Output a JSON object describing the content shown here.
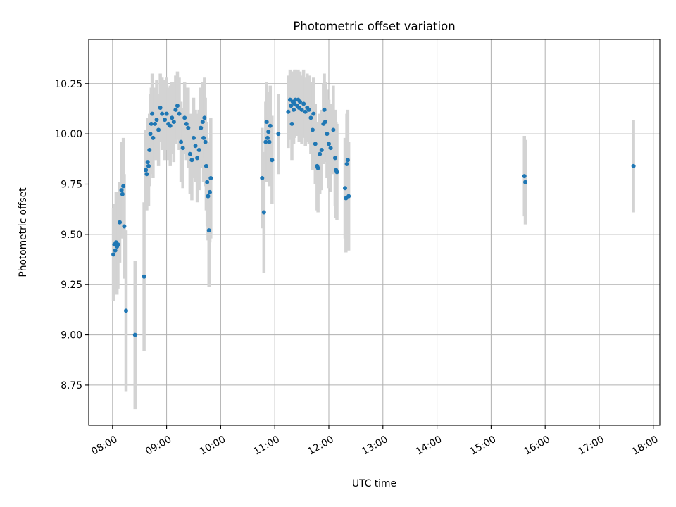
{
  "chart_data": {
    "type": "scatter",
    "title": "Photometric offset variation",
    "xlabel": "UTC time",
    "ylabel": "Photometric offset",
    "x_tick_labels": [
      "08:00",
      "09:00",
      "10:00",
      "11:00",
      "12:00",
      "13:00",
      "14:00",
      "15:00",
      "16:00",
      "17:00",
      "18:00"
    ],
    "x_ticks_hours": [
      8,
      9,
      10,
      11,
      12,
      13,
      14,
      15,
      16,
      17,
      18
    ],
    "y_tick_labels": [
      "8.75",
      "9.00",
      "9.25",
      "9.50",
      "9.75",
      "10.00",
      "10.25"
    ],
    "y_ticks": [
      8.75,
      9.0,
      9.25,
      9.5,
      9.75,
      10.0,
      10.25
    ],
    "xlim_hours": [
      7.56,
      18.12
    ],
    "ylim": [
      8.55,
      10.47
    ],
    "grid": true,
    "colors": {
      "points": "#1f77b4",
      "errorbars": "#d3d3d3",
      "grid": "#b0b0b0"
    },
    "series": [
      {
        "marker": "point",
        "error": "vertical",
        "points": [
          {
            "x": "08:01",
            "y": 9.4,
            "err": 0.23
          },
          {
            "x": "08:02",
            "y": 9.45,
            "err": 0.2
          },
          {
            "x": "08:03",
            "y": 9.42,
            "err": 0.22
          },
          {
            "x": "08:04",
            "y": 9.46,
            "err": 0.25
          },
          {
            "x": "08:05",
            "y": 9.44,
            "err": 0.24
          },
          {
            "x": "08:06",
            "y": 9.45,
            "err": 0.22
          },
          {
            "x": "08:08",
            "y": 9.56,
            "err": 0.2
          },
          {
            "x": "08:10",
            "y": 9.72,
            "err": 0.24
          },
          {
            "x": "08:11",
            "y": 9.7,
            "err": 0.22
          },
          {
            "x": "08:12",
            "y": 9.74,
            "err": 0.24
          },
          {
            "x": "08:13",
            "y": 9.54,
            "err": 0.26
          },
          {
            "x": "08:15",
            "y": 9.12,
            "err": 0.4
          },
          {
            "x": "08:25",
            "y": 9.0,
            "err": 0.37
          },
          {
            "x": "08:35",
            "y": 9.29,
            "err": 0.37
          },
          {
            "x": "08:37",
            "y": 9.82,
            "err": 0.2
          },
          {
            "x": "08:38",
            "y": 9.8,
            "err": 0.18
          },
          {
            "x": "08:39",
            "y": 9.86,
            "err": 0.22
          },
          {
            "x": "08:40",
            "y": 9.84,
            "err": 0.2
          },
          {
            "x": "08:41",
            "y": 9.92,
            "err": 0.18
          },
          {
            "x": "08:42",
            "y": 10.0,
            "err": 0.2
          },
          {
            "x": "08:43",
            "y": 10.05,
            "err": 0.18
          },
          {
            "x": "08:44",
            "y": 10.1,
            "err": 0.2
          },
          {
            "x": "08:45",
            "y": 9.98,
            "err": 0.2
          },
          {
            "x": "08:47",
            "y": 10.05,
            "err": 0.18
          },
          {
            "x": "08:49",
            "y": 10.07,
            "err": 0.2
          },
          {
            "x": "08:51",
            "y": 10.02,
            "err": 0.18
          },
          {
            "x": "08:53",
            "y": 10.13,
            "err": 0.17
          },
          {
            "x": "08:55",
            "y": 10.1,
            "err": 0.18
          },
          {
            "x": "08:58",
            "y": 10.07,
            "err": 0.2
          },
          {
            "x": "09:00",
            "y": 10.1,
            "err": 0.18
          },
          {
            "x": "09:02",
            "y": 10.05,
            "err": 0.18
          },
          {
            "x": "09:04",
            "y": 10.04,
            "err": 0.2
          },
          {
            "x": "09:06",
            "y": 10.08,
            "err": 0.18
          },
          {
            "x": "09:08",
            "y": 10.06,
            "err": 0.2
          },
          {
            "x": "09:10",
            "y": 10.12,
            "err": 0.17
          },
          {
            "x": "09:12",
            "y": 10.14,
            "err": 0.17
          },
          {
            "x": "09:14",
            "y": 10.1,
            "err": 0.18
          },
          {
            "x": "09:16",
            "y": 9.96,
            "err": 0.2
          },
          {
            "x": "09:18",
            "y": 9.93,
            "err": 0.2
          },
          {
            "x": "09:20",
            "y": 10.08,
            "err": 0.18
          },
          {
            "x": "09:22",
            "y": 10.05,
            "err": 0.18
          },
          {
            "x": "09:24",
            "y": 10.03,
            "err": 0.2
          },
          {
            "x": "09:26",
            "y": 9.9,
            "err": 0.2
          },
          {
            "x": "09:28",
            "y": 9.87,
            "err": 0.2
          },
          {
            "x": "09:30",
            "y": 9.98,
            "err": 0.2
          },
          {
            "x": "09:32",
            "y": 9.94,
            "err": 0.18
          },
          {
            "x": "09:34",
            "y": 9.88,
            "err": 0.22
          },
          {
            "x": "09:36",
            "y": 9.92,
            "err": 0.2
          },
          {
            "x": "09:38",
            "y": 10.03,
            "err": 0.2
          },
          {
            "x": "09:40",
            "y": 10.06,
            "err": 0.2
          },
          {
            "x": "09:41",
            "y": 9.98,
            "err": 0.22
          },
          {
            "x": "09:42",
            "y": 10.08,
            "err": 0.2
          },
          {
            "x": "09:43",
            "y": 9.96,
            "err": 0.22
          },
          {
            "x": "09:44",
            "y": 9.84,
            "err": 0.22
          },
          {
            "x": "09:45",
            "y": 9.76,
            "err": 0.22
          },
          {
            "x": "09:46",
            "y": 9.69,
            "err": 0.22
          },
          {
            "x": "09:47",
            "y": 9.52,
            "err": 0.28
          },
          {
            "x": "09:48",
            "y": 9.71,
            "err": 0.25
          },
          {
            "x": "09:49",
            "y": 9.78,
            "err": 0.3
          },
          {
            "x": "10:46",
            "y": 9.78,
            "err": 0.25
          },
          {
            "x": "10:48",
            "y": 9.61,
            "err": 0.3
          },
          {
            "x": "10:50",
            "y": 9.96,
            "err": 0.2
          },
          {
            "x": "10:51",
            "y": 10.06,
            "err": 0.2
          },
          {
            "x": "10:52",
            "y": 9.98,
            "err": 0.22
          },
          {
            "x": "10:53",
            "y": 10.01,
            "err": 0.2
          },
          {
            "x": "10:54",
            "y": 9.96,
            "err": 0.22
          },
          {
            "x": "10:55",
            "y": 10.04,
            "err": 0.2
          },
          {
            "x": "10:57",
            "y": 9.87,
            "err": 0.22
          },
          {
            "x": "11:04",
            "y": 10.0,
            "err": 0.2
          },
          {
            "x": "11:15",
            "y": 10.11,
            "err": 0.18
          },
          {
            "x": "11:17",
            "y": 10.17,
            "err": 0.15
          },
          {
            "x": "11:18",
            "y": 10.14,
            "err": 0.17
          },
          {
            "x": "11:19",
            "y": 10.05,
            "err": 0.18
          },
          {
            "x": "11:20",
            "y": 10.16,
            "err": 0.15
          },
          {
            "x": "11:21",
            "y": 10.12,
            "err": 0.17
          },
          {
            "x": "11:22",
            "y": 10.15,
            "err": 0.17
          },
          {
            "x": "11:23",
            "y": 10.17,
            "err": 0.15
          },
          {
            "x": "11:25",
            "y": 10.14,
            "err": 0.15
          },
          {
            "x": "11:26",
            "y": 10.17,
            "err": 0.15
          },
          {
            "x": "11:27",
            "y": 10.13,
            "err": 0.17
          },
          {
            "x": "11:28",
            "y": 10.16,
            "err": 0.15
          },
          {
            "x": "11:30",
            "y": 10.12,
            "err": 0.17
          },
          {
            "x": "11:32",
            "y": 10.15,
            "err": 0.17
          },
          {
            "x": "11:34",
            "y": 10.11,
            "err": 0.17
          },
          {
            "x": "11:36",
            "y": 10.13,
            "err": 0.17
          },
          {
            "x": "11:38",
            "y": 10.12,
            "err": 0.17
          },
          {
            "x": "11:40",
            "y": 10.08,
            "err": 0.18
          },
          {
            "x": "11:42",
            "y": 10.02,
            "err": 0.2
          },
          {
            "x": "11:43",
            "y": 10.1,
            "err": 0.18
          },
          {
            "x": "11:45",
            "y": 9.95,
            "err": 0.2
          },
          {
            "x": "11:47",
            "y": 9.84,
            "err": 0.22
          },
          {
            "x": "11:48",
            "y": 9.83,
            "err": 0.22
          },
          {
            "x": "11:50",
            "y": 9.9,
            "err": 0.2
          },
          {
            "x": "11:52",
            "y": 9.92,
            "err": 0.2
          },
          {
            "x": "11:54",
            "y": 10.05,
            "err": 0.2
          },
          {
            "x": "11:55",
            "y": 10.12,
            "err": 0.18
          },
          {
            "x": "11:56",
            "y": 10.06,
            "err": 0.2
          },
          {
            "x": "11:58",
            "y": 10.0,
            "err": 0.22
          },
          {
            "x": "12:00",
            "y": 9.95,
            "err": 0.22
          },
          {
            "x": "12:02",
            "y": 9.93,
            "err": 0.22
          },
          {
            "x": "12:05",
            "y": 10.02,
            "err": 0.22
          },
          {
            "x": "12:07",
            "y": 9.88,
            "err": 0.24
          },
          {
            "x": "12:08",
            "y": 9.82,
            "err": 0.24
          },
          {
            "x": "12:09",
            "y": 9.81,
            "err": 0.24
          },
          {
            "x": "12:18",
            "y": 9.73,
            "err": 0.25
          },
          {
            "x": "12:19",
            "y": 9.68,
            "err": 0.27
          },
          {
            "x": "12:20",
            "y": 9.85,
            "err": 0.25
          },
          {
            "x": "12:21",
            "y": 9.87,
            "err": 0.25
          },
          {
            "x": "12:22",
            "y": 9.69,
            "err": 0.27
          },
          {
            "x": "15:37",
            "y": 9.79,
            "err": 0.2
          },
          {
            "x": "15:38",
            "y": 9.76,
            "err": 0.21
          },
          {
            "x": "17:38",
            "y": 9.84,
            "err": 0.23
          }
        ]
      }
    ]
  }
}
